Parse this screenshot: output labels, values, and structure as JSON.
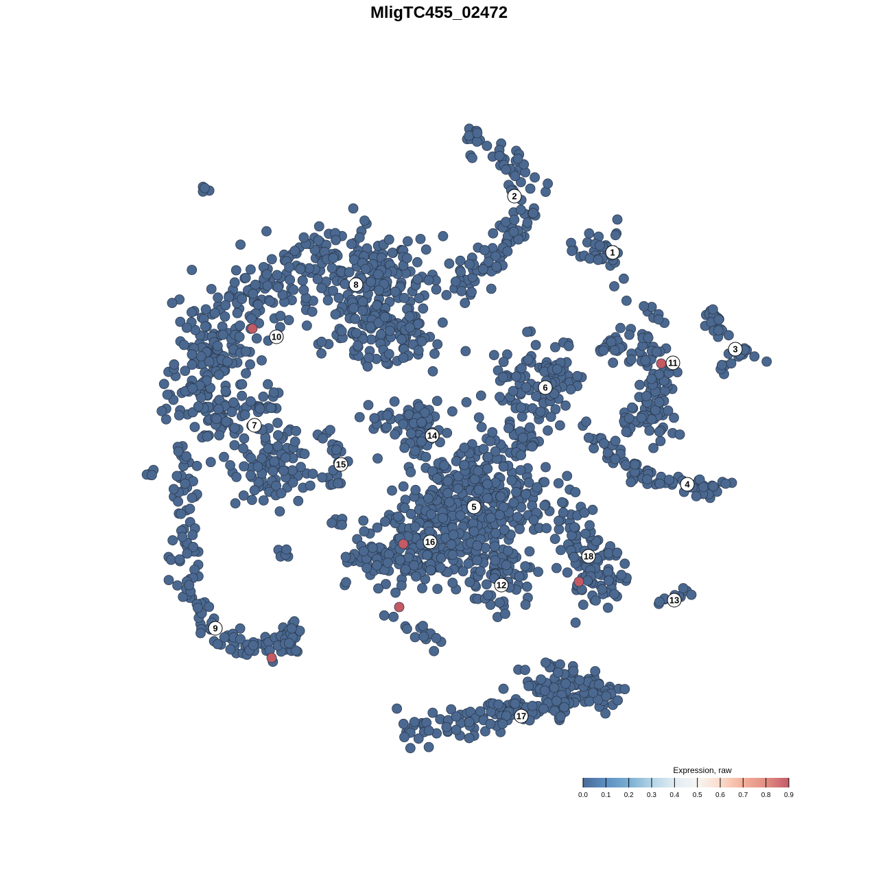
{
  "chart_data": {
    "type": "scatter",
    "title": "MligTC455_02472",
    "xlabel": "",
    "ylabel": "",
    "grid": false,
    "colors": {
      "point_low": "#4a6890",
      "point_high": "#c45a64",
      "point_stroke": "#2c3a4e"
    },
    "cluster_labels": [
      {
        "label": "1",
        "x": 25.3,
        "y": 27.2
      },
      {
        "label": "2",
        "x": 11.0,
        "y": 35.4
      },
      {
        "label": "3",
        "x": 43.2,
        "y": 13.1
      },
      {
        "label": "4",
        "x": 36.2,
        "y": -6.6
      },
      {
        "label": "5",
        "x": 5.1,
        "y": -9.9
      },
      {
        "label": "6",
        "x": 15.5,
        "y": 7.5
      },
      {
        "label": "7",
        "x": -26.9,
        "y": 2.0
      },
      {
        "label": "8",
        "x": -12.1,
        "y": 22.5
      },
      {
        "label": "9",
        "x": -32.6,
        "y": -27.6
      },
      {
        "label": "10",
        "x": -23.7,
        "y": 14.9
      },
      {
        "label": "11",
        "x": 34.1,
        "y": 11.1
      },
      {
        "label": "12",
        "x": 9.1,
        "y": -21.3
      },
      {
        "label": "13",
        "x": 34.3,
        "y": -23.5
      },
      {
        "label": "14",
        "x": -1.0,
        "y": 0.5
      },
      {
        "label": "15",
        "x": -14.3,
        "y": -3.7
      },
      {
        "label": "16",
        "x": -1.3,
        "y": -15.0
      },
      {
        "label": "17",
        "x": 12.0,
        "y": -40.4
      },
      {
        "label": "18",
        "x": 21.8,
        "y": -17.1
      }
    ],
    "expressing_cells": [
      {
        "x": -27.2,
        "y": 16.1,
        "value": 0.9
      },
      {
        "x": 32.4,
        "y": 11.0,
        "value": 0.9
      },
      {
        "x": -5.2,
        "y": -15.3,
        "value": 0.9
      },
      {
        "x": -5.8,
        "y": -24.5,
        "value": 0.9
      },
      {
        "x": -24.4,
        "y": -31.9,
        "value": 0.9
      },
      {
        "x": 20.4,
        "y": -20.8,
        "value": 0.9
      }
    ],
    "legend": {
      "title": "Expression, raw",
      "position": "bottom-right",
      "ticks": [
        "0.0",
        "0.1",
        "0.2",
        "0.3",
        "0.4",
        "0.5",
        "0.6",
        "0.7",
        "0.8",
        "0.9"
      ],
      "range": [
        0,
        0.9
      ],
      "gradient": [
        "#4a6b98",
        "#5e8fc2",
        "#7aaed2",
        "#b3d4e5",
        "#e2ecf3",
        "#f6f5f3",
        "#fbdccb",
        "#f3b09a",
        "#e18e84",
        "#c45a69"
      ]
    }
  }
}
